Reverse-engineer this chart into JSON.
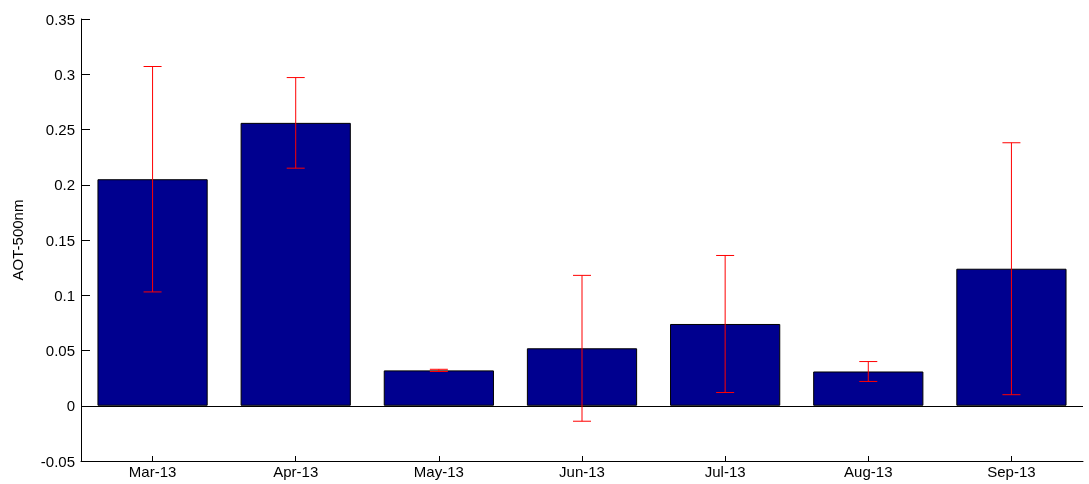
{
  "chart_data": {
    "type": "bar",
    "ylabel": "AOT-500nm",
    "categories": [
      "Mar-13",
      "Apr-13",
      "May-13",
      "Jun-13",
      "Jul-13",
      "Aug-13",
      "Sep-13"
    ],
    "values": [
      0.205,
      0.256,
      0.032,
      0.052,
      0.074,
      0.031,
      0.124
    ],
    "errors": [
      0.102,
      0.041,
      0.001,
      0.066,
      0.062,
      0.009,
      0.114
    ],
    "color": "#00008f",
    "ylim": [
      -0.05,
      0.35
    ],
    "yticks": [
      -0.05,
      0,
      0.05,
      0.1,
      0.15,
      0.2,
      0.25,
      0.3,
      0.35
    ],
    "ref_lines": [
      {
        "axis": "y",
        "value": 0,
        "color": "#000000"
      }
    ]
  }
}
